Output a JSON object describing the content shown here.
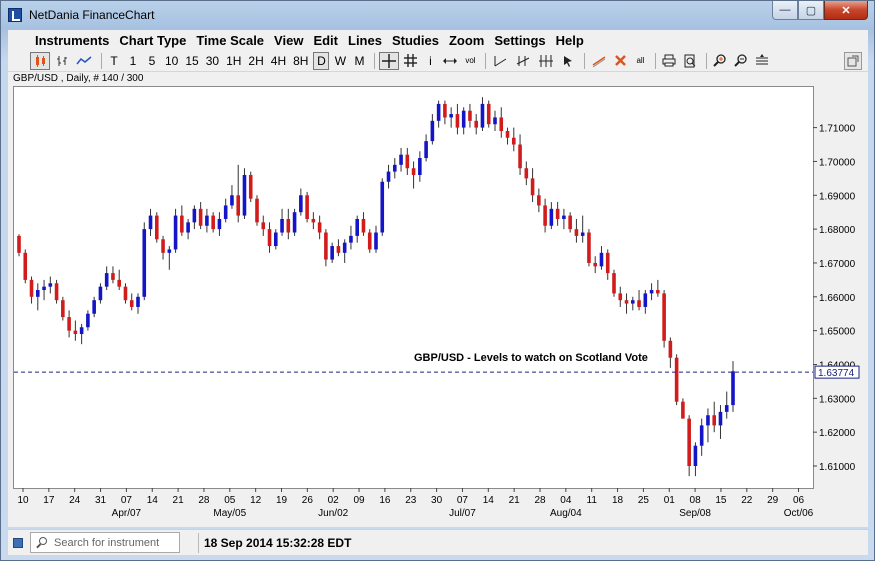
{
  "window": {
    "title": "NetDania FinanceChart",
    "close_label": "✕",
    "max_label": "▢",
    "min_label": "—"
  },
  "menu": [
    "Instruments",
    "Chart Type",
    "Time Scale",
    "View",
    "Edit",
    "Lines",
    "Studies",
    "Zoom",
    "Settings",
    "Help"
  ],
  "toolbar": {
    "timescales": [
      "T",
      "1",
      "5",
      "10",
      "15",
      "30",
      "1H",
      "2H",
      "4H",
      "8H",
      "D",
      "W",
      "M"
    ],
    "selected_timescale": "D",
    "vol_label": "vol",
    "info_label": "i",
    "all_label": "all"
  },
  "chart_header": "GBP/USD , Daily, # 140 / 300",
  "annotation": "GBP/USD - Levels to watch on Scotland Vote",
  "current_price_label": "1.63774",
  "status": {
    "search_placeholder": "Search for instrument",
    "datetime": "18 Sep 2014 15:32:28 EDT"
  },
  "colors": {
    "up": "#1515c8",
    "down": "#d21c1c",
    "current_line": "#1a237e"
  },
  "chart_data": {
    "type": "candlestick",
    "symbol": "GBP/USD",
    "ylim": [
      1.6035,
      1.722
    ],
    "y_ticks": [
      "1.61000",
      "1.62000",
      "1.63000",
      "1.64000",
      "1.65000",
      "1.66000",
      "1.67000",
      "1.68000",
      "1.69000",
      "1.70000",
      "1.71000"
    ],
    "y_tick_values": [
      1.61,
      1.62,
      1.63,
      1.64,
      1.65,
      1.66,
      1.67,
      1.68,
      1.69,
      1.7,
      1.71
    ],
    "x_day_labels": [
      "10",
      "17",
      "24",
      "31",
      "07",
      "14",
      "21",
      "28",
      "05",
      "12",
      "19",
      "26",
      "02",
      "09",
      "16",
      "23",
      "30",
      "07",
      "14",
      "21",
      "28",
      "04",
      "11",
      "18",
      "25",
      "01",
      "08",
      "15",
      "22",
      "29",
      "06"
    ],
    "x_month_labels": [
      {
        "label": "Apr/07",
        "index": 4
      },
      {
        "label": "May/05",
        "index": 8
      },
      {
        "label": "Jun/02",
        "index": 12
      },
      {
        "label": "Jul/07",
        "index": 17
      },
      {
        "label": "Aug/04",
        "index": 21
      },
      {
        "label": "Sep/08",
        "index": 26
      },
      {
        "label": "Oct/06",
        "index": 30
      }
    ],
    "current_price": 1.63774,
    "candles": [
      [
        1.678,
        1.6785,
        1.672,
        1.673
      ],
      [
        1.673,
        1.674,
        1.664,
        1.665
      ],
      [
        1.665,
        1.666,
        1.658,
        1.66
      ],
      [
        1.66,
        1.664,
        1.656,
        1.662
      ],
      [
        1.662,
        1.665,
        1.659,
        1.663
      ],
      [
        1.663,
        1.666,
        1.661,
        1.664
      ],
      [
        1.664,
        1.665,
        1.658,
        1.659
      ],
      [
        1.659,
        1.66,
        1.653,
        1.654
      ],
      [
        1.654,
        1.656,
        1.648,
        1.65
      ],
      [
        1.65,
        1.653,
        1.647,
        1.649
      ],
      [
        1.649,
        1.652,
        1.646,
        1.651
      ],
      [
        1.651,
        1.656,
        1.65,
        1.655
      ],
      [
        1.655,
        1.66,
        1.654,
        1.659
      ],
      [
        1.659,
        1.664,
        1.658,
        1.663
      ],
      [
        1.663,
        1.669,
        1.662,
        1.667
      ],
      [
        1.667,
        1.669,
        1.664,
        1.665
      ],
      [
        1.665,
        1.668,
        1.662,
        1.663
      ],
      [
        1.663,
        1.664,
        1.658,
        1.659
      ],
      [
        1.659,
        1.661,
        1.656,
        1.657
      ],
      [
        1.657,
        1.661,
        1.655,
        1.66
      ],
      [
        1.66,
        1.682,
        1.659,
        1.68
      ],
      [
        1.68,
        1.686,
        1.678,
        1.684
      ],
      [
        1.684,
        1.685,
        1.676,
        1.677
      ],
      [
        1.677,
        1.678,
        1.671,
        1.673
      ],
      [
        1.673,
        1.675,
        1.668,
        1.674
      ],
      [
        1.674,
        1.686,
        1.673,
        1.684
      ],
      [
        1.684,
        1.687,
        1.678,
        1.679
      ],
      [
        1.679,
        1.683,
        1.677,
        1.682
      ],
      [
        1.682,
        1.687,
        1.68,
        1.686
      ],
      [
        1.686,
        1.688,
        1.68,
        1.681
      ],
      [
        1.681,
        1.686,
        1.679,
        1.684
      ],
      [
        1.684,
        1.685,
        1.679,
        1.68
      ],
      [
        1.68,
        1.685,
        1.678,
        1.683
      ],
      [
        1.683,
        1.689,
        1.682,
        1.687
      ],
      [
        1.687,
        1.693,
        1.686,
        1.69
      ],
      [
        1.69,
        1.699,
        1.682,
        1.684
      ],
      [
        1.684,
        1.698,
        1.683,
        1.696
      ],
      [
        1.696,
        1.697,
        1.688,
        1.689
      ],
      [
        1.689,
        1.69,
        1.681,
        1.682
      ],
      [
        1.682,
        1.684,
        1.678,
        1.68
      ],
      [
        1.68,
        1.682,
        1.673,
        1.675
      ],
      [
        1.675,
        1.68,
        1.674,
        1.679
      ],
      [
        1.679,
        1.686,
        1.678,
        1.683
      ],
      [
        1.683,
        1.686,
        1.677,
        1.679
      ],
      [
        1.679,
        1.686,
        1.678,
        1.685
      ],
      [
        1.685,
        1.692,
        1.684,
        1.69
      ],
      [
        1.69,
        1.691,
        1.682,
        1.683
      ],
      [
        1.683,
        1.685,
        1.68,
        1.682
      ],
      [
        1.682,
        1.684,
        1.677,
        1.679
      ],
      [
        1.679,
        1.68,
        1.669,
        1.671
      ],
      [
        1.671,
        1.676,
        1.67,
        1.675
      ],
      [
        1.675,
        1.677,
        1.672,
        1.673
      ],
      [
        1.673,
        1.677,
        1.67,
        1.676
      ],
      [
        1.676,
        1.681,
        1.674,
        1.678
      ],
      [
        1.678,
        1.684,
        1.676,
        1.683
      ],
      [
        1.683,
        1.685,
        1.678,
        1.679
      ],
      [
        1.679,
        1.68,
        1.673,
        1.674
      ],
      [
        1.674,
        1.681,
        1.673,
        1.679
      ],
      [
        1.679,
        1.695,
        1.678,
        1.694
      ],
      [
        1.694,
        1.699,
        1.692,
        1.697
      ],
      [
        1.697,
        1.701,
        1.695,
        1.699
      ],
      [
        1.699,
        1.704,
        1.697,
        1.702
      ],
      [
        1.702,
        1.704,
        1.696,
        1.698
      ],
      [
        1.698,
        1.7,
        1.692,
        1.696
      ],
      [
        1.696,
        1.703,
        1.694,
        1.701
      ],
      [
        1.701,
        1.708,
        1.7,
        1.706
      ],
      [
        1.706,
        1.714,
        1.705,
        1.712
      ],
      [
        1.712,
        1.718,
        1.71,
        1.717
      ],
      [
        1.717,
        1.718,
        1.711,
        1.713
      ],
      [
        1.713,
        1.716,
        1.71,
        1.714
      ],
      [
        1.714,
        1.717,
        1.708,
        1.71
      ],
      [
        1.71,
        1.716,
        1.708,
        1.715
      ],
      [
        1.715,
        1.717,
        1.71,
        1.712
      ],
      [
        1.712,
        1.714,
        1.708,
        1.71
      ],
      [
        1.71,
        1.719,
        1.709,
        1.717
      ],
      [
        1.717,
        1.718,
        1.71,
        1.711
      ],
      [
        1.711,
        1.715,
        1.709,
        1.713
      ],
      [
        1.713,
        1.716,
        1.707,
        1.709
      ],
      [
        1.709,
        1.71,
        1.705,
        1.707
      ],
      [
        1.707,
        1.71,
        1.703,
        1.705
      ],
      [
        1.705,
        1.708,
        1.696,
        1.698
      ],
      [
        1.698,
        1.7,
        1.693,
        1.695
      ],
      [
        1.695,
        1.698,
        1.688,
        1.69
      ],
      [
        1.69,
        1.692,
        1.685,
        1.687
      ],
      [
        1.687,
        1.689,
        1.679,
        1.681
      ],
      [
        1.681,
        1.688,
        1.68,
        1.686
      ],
      [
        1.686,
        1.688,
        1.681,
        1.683
      ],
      [
        1.683,
        1.686,
        1.68,
        1.684
      ],
      [
        1.684,
        1.685,
        1.679,
        1.68
      ],
      [
        1.68,
        1.683,
        1.676,
        1.678
      ],
      [
        1.678,
        1.684,
        1.676,
        1.679
      ],
      [
        1.679,
        1.68,
        1.669,
        1.67
      ],
      [
        1.67,
        1.672,
        1.667,
        1.669
      ],
      [
        1.669,
        1.675,
        1.668,
        1.673
      ],
      [
        1.673,
        1.674,
        1.665,
        1.667
      ],
      [
        1.667,
        1.668,
        1.66,
        1.661
      ],
      [
        1.661,
        1.663,
        1.657,
        1.659
      ],
      [
        1.659,
        1.661,
        1.655,
        1.658
      ],
      [
        1.658,
        1.66,
        1.656,
        1.659
      ],
      [
        1.659,
        1.662,
        1.656,
        1.657
      ],
      [
        1.657,
        1.662,
        1.655,
        1.661
      ],
      [
        1.661,
        1.664,
        1.659,
        1.662
      ],
      [
        1.662,
        1.665,
        1.66,
        1.661
      ],
      [
        1.661,
        1.662,
        1.645,
        1.647
      ],
      [
        1.647,
        1.648,
        1.639,
        1.642
      ],
      [
        1.642,
        1.643,
        1.628,
        1.629
      ],
      [
        1.629,
        1.63,
        1.624,
        1.624
      ],
      [
        1.624,
        1.625,
        1.607,
        1.61
      ],
      [
        1.61,
        1.617,
        1.607,
        1.616
      ],
      [
        1.616,
        1.624,
        1.613,
        1.622
      ],
      [
        1.622,
        1.627,
        1.617,
        1.625
      ],
      [
        1.625,
        1.629,
        1.62,
        1.622
      ],
      [
        1.622,
        1.628,
        1.618,
        1.626
      ],
      [
        1.626,
        1.632,
        1.624,
        1.628
      ],
      [
        1.628,
        1.641,
        1.626,
        1.638
      ]
    ]
  }
}
